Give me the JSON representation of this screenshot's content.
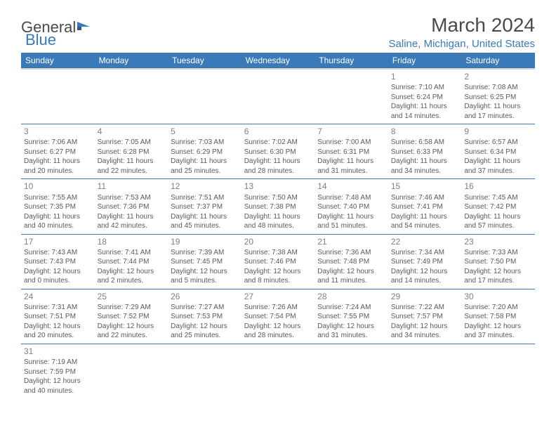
{
  "logo": {
    "text_general": "General",
    "text_blue": "Blue"
  },
  "title": "March 2024",
  "subtitle": "Saline, Michigan, United States",
  "colors": {
    "header_bg": "#3a7ab8",
    "header_text": "#ffffff",
    "grid_line": "#3a7ab8",
    "text": "#5a5a5a",
    "daynum": "#808080",
    "accent": "#3a7ab8"
  },
  "day_headers": [
    "Sunday",
    "Monday",
    "Tuesday",
    "Wednesday",
    "Thursday",
    "Friday",
    "Saturday"
  ],
  "weeks": [
    [
      null,
      null,
      null,
      null,
      null,
      {
        "n": "1",
        "sr": "Sunrise: 7:10 AM",
        "ss": "Sunset: 6:24 PM",
        "dl": "Daylight: 11 hours and 14 minutes."
      },
      {
        "n": "2",
        "sr": "Sunrise: 7:08 AM",
        "ss": "Sunset: 6:25 PM",
        "dl": "Daylight: 11 hours and 17 minutes."
      }
    ],
    [
      {
        "n": "3",
        "sr": "Sunrise: 7:06 AM",
        "ss": "Sunset: 6:27 PM",
        "dl": "Daylight: 11 hours and 20 minutes."
      },
      {
        "n": "4",
        "sr": "Sunrise: 7:05 AM",
        "ss": "Sunset: 6:28 PM",
        "dl": "Daylight: 11 hours and 22 minutes."
      },
      {
        "n": "5",
        "sr": "Sunrise: 7:03 AM",
        "ss": "Sunset: 6:29 PM",
        "dl": "Daylight: 11 hours and 25 minutes."
      },
      {
        "n": "6",
        "sr": "Sunrise: 7:02 AM",
        "ss": "Sunset: 6:30 PM",
        "dl": "Daylight: 11 hours and 28 minutes."
      },
      {
        "n": "7",
        "sr": "Sunrise: 7:00 AM",
        "ss": "Sunset: 6:31 PM",
        "dl": "Daylight: 11 hours and 31 minutes."
      },
      {
        "n": "8",
        "sr": "Sunrise: 6:58 AM",
        "ss": "Sunset: 6:33 PM",
        "dl": "Daylight: 11 hours and 34 minutes."
      },
      {
        "n": "9",
        "sr": "Sunrise: 6:57 AM",
        "ss": "Sunset: 6:34 PM",
        "dl": "Daylight: 11 hours and 37 minutes."
      }
    ],
    [
      {
        "n": "10",
        "sr": "Sunrise: 7:55 AM",
        "ss": "Sunset: 7:35 PM",
        "dl": "Daylight: 11 hours and 40 minutes."
      },
      {
        "n": "11",
        "sr": "Sunrise: 7:53 AM",
        "ss": "Sunset: 7:36 PM",
        "dl": "Daylight: 11 hours and 42 minutes."
      },
      {
        "n": "12",
        "sr": "Sunrise: 7:51 AM",
        "ss": "Sunset: 7:37 PM",
        "dl": "Daylight: 11 hours and 45 minutes."
      },
      {
        "n": "13",
        "sr": "Sunrise: 7:50 AM",
        "ss": "Sunset: 7:38 PM",
        "dl": "Daylight: 11 hours and 48 minutes."
      },
      {
        "n": "14",
        "sr": "Sunrise: 7:48 AM",
        "ss": "Sunset: 7:40 PM",
        "dl": "Daylight: 11 hours and 51 minutes."
      },
      {
        "n": "15",
        "sr": "Sunrise: 7:46 AM",
        "ss": "Sunset: 7:41 PM",
        "dl": "Daylight: 11 hours and 54 minutes."
      },
      {
        "n": "16",
        "sr": "Sunrise: 7:45 AM",
        "ss": "Sunset: 7:42 PM",
        "dl": "Daylight: 11 hours and 57 minutes."
      }
    ],
    [
      {
        "n": "17",
        "sr": "Sunrise: 7:43 AM",
        "ss": "Sunset: 7:43 PM",
        "dl": "Daylight: 12 hours and 0 minutes."
      },
      {
        "n": "18",
        "sr": "Sunrise: 7:41 AM",
        "ss": "Sunset: 7:44 PM",
        "dl": "Daylight: 12 hours and 2 minutes."
      },
      {
        "n": "19",
        "sr": "Sunrise: 7:39 AM",
        "ss": "Sunset: 7:45 PM",
        "dl": "Daylight: 12 hours and 5 minutes."
      },
      {
        "n": "20",
        "sr": "Sunrise: 7:38 AM",
        "ss": "Sunset: 7:46 PM",
        "dl": "Daylight: 12 hours and 8 minutes."
      },
      {
        "n": "21",
        "sr": "Sunrise: 7:36 AM",
        "ss": "Sunset: 7:48 PM",
        "dl": "Daylight: 12 hours and 11 minutes."
      },
      {
        "n": "22",
        "sr": "Sunrise: 7:34 AM",
        "ss": "Sunset: 7:49 PM",
        "dl": "Daylight: 12 hours and 14 minutes."
      },
      {
        "n": "23",
        "sr": "Sunrise: 7:33 AM",
        "ss": "Sunset: 7:50 PM",
        "dl": "Daylight: 12 hours and 17 minutes."
      }
    ],
    [
      {
        "n": "24",
        "sr": "Sunrise: 7:31 AM",
        "ss": "Sunset: 7:51 PM",
        "dl": "Daylight: 12 hours and 20 minutes."
      },
      {
        "n": "25",
        "sr": "Sunrise: 7:29 AM",
        "ss": "Sunset: 7:52 PM",
        "dl": "Daylight: 12 hours and 22 minutes."
      },
      {
        "n": "26",
        "sr": "Sunrise: 7:27 AM",
        "ss": "Sunset: 7:53 PM",
        "dl": "Daylight: 12 hours and 25 minutes."
      },
      {
        "n": "27",
        "sr": "Sunrise: 7:26 AM",
        "ss": "Sunset: 7:54 PM",
        "dl": "Daylight: 12 hours and 28 minutes."
      },
      {
        "n": "28",
        "sr": "Sunrise: 7:24 AM",
        "ss": "Sunset: 7:55 PM",
        "dl": "Daylight: 12 hours and 31 minutes."
      },
      {
        "n": "29",
        "sr": "Sunrise: 7:22 AM",
        "ss": "Sunset: 7:57 PM",
        "dl": "Daylight: 12 hours and 34 minutes."
      },
      {
        "n": "30",
        "sr": "Sunrise: 7:20 AM",
        "ss": "Sunset: 7:58 PM",
        "dl": "Daylight: 12 hours and 37 minutes."
      }
    ],
    [
      {
        "n": "31",
        "sr": "Sunrise: 7:19 AM",
        "ss": "Sunset: 7:59 PM",
        "dl": "Daylight: 12 hours and 40 minutes."
      },
      null,
      null,
      null,
      null,
      null,
      null
    ]
  ]
}
